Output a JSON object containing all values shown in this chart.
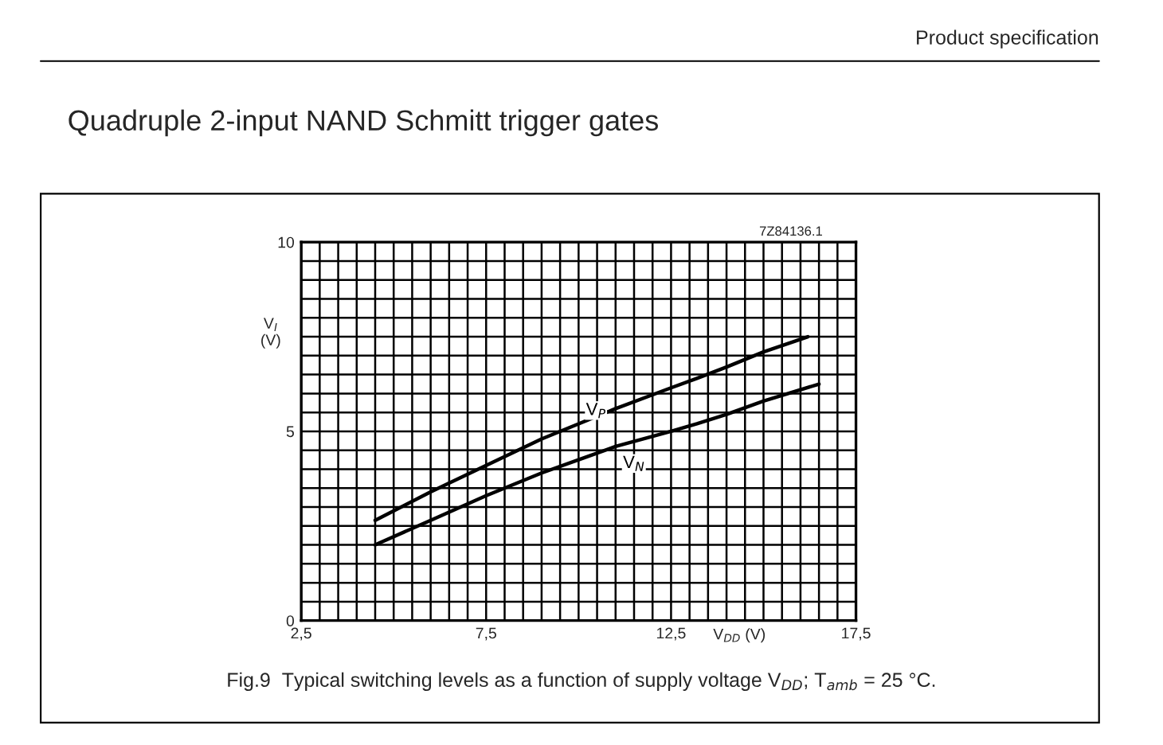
{
  "chart_data": {
    "type": "line",
    "title": "Quadruple 2-input NAND Schmitt trigger gates",
    "xlabel": "V$_{DD}$ (V)",
    "ylabel": "V$_{I}$\n(V)",
    "series": [
      {
        "name": "V$_{P}$",
        "color": "#000000",
        "x": [
          4.5,
          6,
          7.5,
          9,
          10,
          11,
          12.5,
          13.2,
          14,
          15,
          16.2
        ],
        "values": [
          2.65,
          3.4,
          4.1,
          4.8,
          5.2,
          5.6,
          6.15,
          6.4,
          6.7,
          7.1,
          7.5
        ]
      },
      {
        "name": "V$_{N}$",
        "color": "#000000",
        "x": [
          4.5,
          6,
          7.5,
          9,
          10,
          11,
          12.5,
          13.2,
          14,
          15,
          16.5
        ],
        "values": [
          2.0,
          2.65,
          3.3,
          3.9,
          4.25,
          4.6,
          5.0,
          5.2,
          5.45,
          5.8,
          6.25
        ]
      }
    ],
    "xlim": [
      2.5,
      17.5
    ],
    "ylim": [
      0,
      10
    ],
    "xticks": [
      {
        "value": 2.5,
        "label": "2,5"
      },
      {
        "value": 3,
        "label": null
      },
      {
        "value": 3.5,
        "label": null
      },
      {
        "value": 4,
        "label": null
      },
      {
        "value": 4.5,
        "label": null
      },
      {
        "value": 5,
        "label": null
      },
      {
        "value": 5.5,
        "label": null
      },
      {
        "value": 6,
        "label": null
      },
      {
        "value": 6.5,
        "label": null
      },
      {
        "value": 7,
        "label": null
      },
      {
        "value": 7.5,
        "label": "7,5"
      },
      {
        "value": 8,
        "label": null
      },
      {
        "value": 8.5,
        "label": null
      },
      {
        "value": 9,
        "label": null
      },
      {
        "value": 9.5,
        "label": null
      },
      {
        "value": 10,
        "label": null
      },
      {
        "value": 10.5,
        "label": null
      },
      {
        "value": 11,
        "label": null
      },
      {
        "value": 11.5,
        "label": null
      },
      {
        "value": 12,
        "label": null
      },
      {
        "value": 12.5,
        "label": "12,5"
      },
      {
        "value": 13,
        "label": null
      },
      {
        "value": 13.5,
        "label": null
      },
      {
        "value": 14,
        "label": null
      },
      {
        "value": 14.5,
        "label": null
      },
      {
        "value": 15,
        "label": null
      },
      {
        "value": 15.5,
        "label": null
      },
      {
        "value": 16,
        "label": null
      },
      {
        "value": 16.5,
        "label": null
      },
      {
        "value": 17,
        "label": null
      },
      {
        "value": 17.5,
        "label": "17,5"
      }
    ],
    "yticks": [
      0,
      {
        "value": 0.5,
        "label": null
      },
      {
        "value": 1,
        "label": null
      },
      {
        "value": 1.5,
        "label": null
      },
      {
        "value": 2,
        "label": null
      },
      {
        "value": 2.5,
        "label": null
      },
      {
        "value": 3,
        "label": null
      },
      {
        "value": 3.5,
        "label": null
      },
      {
        "value": 4,
        "label": null
      },
      {
        "value": 4.5,
        "label": null
      },
      5,
      {
        "value": 5.5,
        "label": null
      },
      {
        "value": 6,
        "label": null
      },
      {
        "value": 6.5,
        "label": null
      },
      {
        "value": 7,
        "label": null
      },
      {
        "value": 7.5,
        "label": null
      },
      {
        "value": 8,
        "label": null
      },
      {
        "value": 8.5,
        "label": null
      },
      {
        "value": 9,
        "label": null
      },
      {
        "value": 9.5,
        "label": null
      },
      10
    ],
    "grid": true,
    "legend": false,
    "marker": "none",
    "line_style": "solid",
    "annotations": [
      "Product specification",
      "7Z84136.1",
      "Fig.9  Typical switching levels as a function of supply voltage V$_{DD}$; T$_{amb}$ = 25 °C."
    ]
  }
}
